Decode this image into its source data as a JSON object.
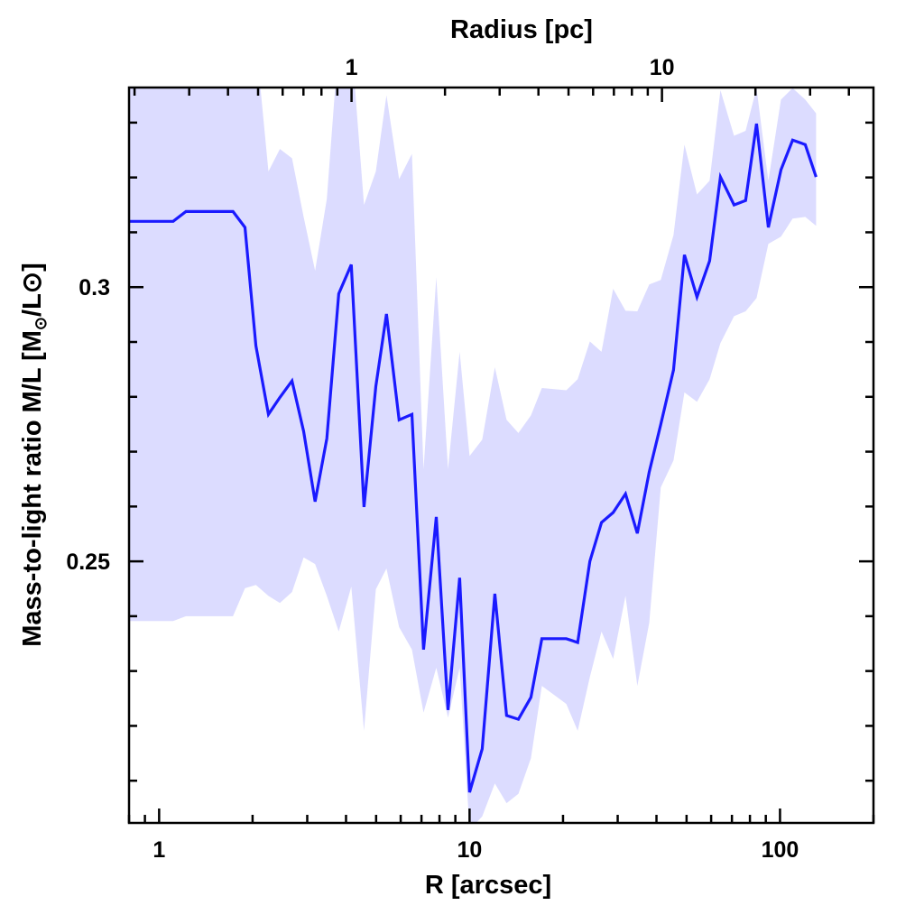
{
  "chart_data": {
    "type": "line",
    "title": "",
    "xlabel": "R [arcsec]",
    "xlabel_top": "Radius [pc]",
    "ylabel_parts": [
      "Mass-to-light ratio M/L [M",
      "⊙",
      "/L⊙]"
    ],
    "xscale": "log",
    "xlim": [
      0.8,
      200
    ],
    "ylim": [
      0.2023,
      0.3364
    ],
    "x_ticks": [
      {
        "value": 1,
        "label": "1"
      },
      {
        "value": 10,
        "label": "10"
      },
      {
        "value": 100,
        "label": "100"
      }
    ],
    "y_ticks": [
      {
        "value": 0.25,
        "label": "0.25"
      },
      {
        "value": 0.3,
        "label": "0.3"
      }
    ],
    "y_minor_step": 0.01,
    "top_axis": {
      "pc_per_arcsec": 0.24,
      "ticks": [
        {
          "value": 1,
          "label": "1"
        },
        {
          "value": 10,
          "label": "10"
        }
      ]
    },
    "grid": false,
    "line_color": "#1a1aff",
    "band_color": "#dcdcff",
    "series": [
      {
        "name": "M/L profile",
        "x": [
          0.8,
          1.11,
          1.22,
          1.73,
          1.89,
          2.05,
          2.25,
          2.45,
          2.68,
          2.92,
          3.18,
          3.47,
          3.79,
          4.16,
          4.57,
          4.99,
          5.4,
          5.93,
          6.52,
          7.11,
          7.81,
          8.52,
          9.29,
          10.0,
          10.98,
          12.06,
          13.16,
          14.36,
          15.77,
          17.09,
          20.5,
          22.3,
          24.4,
          26.6,
          29.0,
          31.8,
          34.7,
          37.9,
          41.3,
          45.4,
          49.2,
          54.0,
          59.3,
          64.3,
          71.1,
          77.5,
          84.0,
          91.7,
          100.7,
          109.8,
          120.6,
          130.7
        ],
        "y": [
          0.312,
          0.312,
          0.3138,
          0.3138,
          0.3109,
          0.2893,
          0.2768,
          0.2799,
          0.2829,
          0.2737,
          0.2609,
          0.2724,
          0.2988,
          0.3041,
          0.2599,
          0.2819,
          0.2951,
          0.2758,
          0.2768,
          0.2339,
          0.2581,
          0.2229,
          0.247,
          0.2079,
          0.2158,
          0.2441,
          0.2219,
          0.2212,
          0.2252,
          0.2359,
          0.2359,
          0.2352,
          0.25,
          0.2571,
          0.2589,
          0.2623,
          0.2551,
          0.2663,
          0.275,
          0.2849,
          0.3059,
          0.2982,
          0.3048,
          0.3201,
          0.315,
          0.3158,
          0.3298,
          0.3109,
          0.3214,
          0.3268,
          0.326,
          0.3201
        ],
        "y_upper": [
          0.345,
          0.345,
          0.345,
          0.345,
          0.345,
          0.345,
          0.3211,
          0.3252,
          0.3235,
          0.3128,
          0.303,
          0.3161,
          0.345,
          0.345,
          0.315,
          0.3211,
          0.335,
          0.3197,
          0.3243,
          0.2668,
          0.3018,
          0.2668,
          0.2882,
          0.2692,
          0.2722,
          0.2854,
          0.2758,
          0.2734,
          0.2766,
          0.2816,
          0.2812,
          0.2832,
          0.2901,
          0.2882,
          0.2997,
          0.2957,
          0.2956,
          0.3005,
          0.3013,
          0.3095,
          0.326,
          0.3169,
          0.3194,
          0.3359,
          0.3276,
          0.3285,
          0.3363,
          0.3194,
          0.3342,
          0.3363,
          0.3342,
          0.3317
        ],
        "y_lower": [
          0.2391,
          0.2391,
          0.24,
          0.24,
          0.2451,
          0.2457,
          0.2437,
          0.2424,
          0.2444,
          0.2507,
          0.2495,
          0.2437,
          0.2372,
          0.2454,
          0.2191,
          0.2449,
          0.2487,
          0.238,
          0.2339,
          0.2224,
          0.2306,
          0.2215,
          0.2306,
          0.201,
          0.2035,
          0.2095,
          0.2059,
          0.2076,
          0.2141,
          0.2273,
          0.224,
          0.2191,
          0.2289,
          0.2372,
          0.2322,
          0.2437,
          0.2273,
          0.2388,
          0.2635,
          0.2684,
          0.2808,
          0.2791,
          0.2832,
          0.2898,
          0.2947,
          0.2956,
          0.298,
          0.3079,
          0.3092,
          0.3125,
          0.3128,
          0.3112
        ]
      }
    ]
  }
}
